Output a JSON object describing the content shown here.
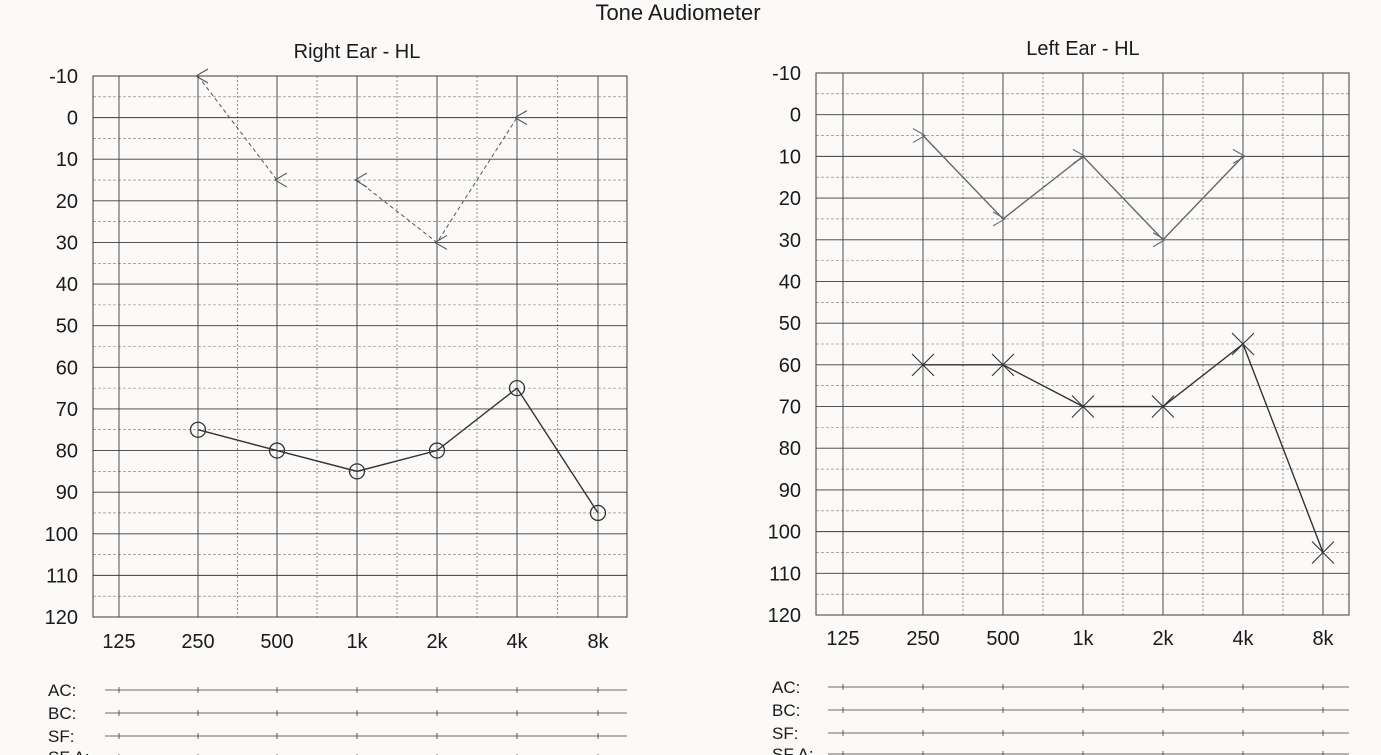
{
  "title": "Tone Audiometer",
  "chart_data": [
    {
      "type": "line",
      "title": "Right Ear - HL",
      "categories": [
        "125",
        "250",
        "500",
        "1k",
        "2k",
        "4k",
        "8k"
      ],
      "y_ticks": [
        "-10",
        "0",
        "10",
        "20",
        "30",
        "40",
        "50",
        "60",
        "70",
        "80",
        "90",
        "100",
        "110",
        "120"
      ],
      "ylim": [
        -10,
        120
      ],
      "y_inverted": true,
      "grid": true,
      "series": [
        {
          "symbol": "less-than",
          "line_style": "dashed",
          "color": "#555555",
          "segments": [
            [
              {
                "x": "250",
                "y": -10
              },
              {
                "x": "500",
                "y": 15
              }
            ],
            [
              {
                "x": "1k",
                "y": 15
              },
              {
                "x": "2k",
                "y": 30
              },
              {
                "x": "4k",
                "y": 0
              }
            ]
          ]
        },
        {
          "symbol": "circle",
          "line_style": "solid",
          "color": "#333333",
          "segments": [
            [
              {
                "x": "250",
                "y": 75
              },
              {
                "x": "500",
                "y": 80
              },
              {
                "x": "1k",
                "y": 85
              },
              {
                "x": "2k",
                "y": 80
              },
              {
                "x": "4k",
                "y": 65
              },
              {
                "x": "8k",
                "y": 95
              }
            ]
          ]
        }
      ]
    },
    {
      "type": "line",
      "title": "Left Ear - HL",
      "categories": [
        "125",
        "250",
        "500",
        "1k",
        "2k",
        "4k",
        "8k"
      ],
      "y_ticks": [
        "-10",
        "0",
        "10",
        "20",
        "30",
        "40",
        "50",
        "60",
        "70",
        "80",
        "90",
        "100",
        "110",
        "120"
      ],
      "ylim": [
        -10,
        120
      ],
      "y_inverted": true,
      "grid": true,
      "series": [
        {
          "symbol": "greater-than",
          "line_style": "solid",
          "color": "#666666",
          "segments": [
            [
              {
                "x": "250",
                "y": 5
              },
              {
                "x": "500",
                "y": 25
              },
              {
                "x": "1k",
                "y": 10
              },
              {
                "x": "2k",
                "y": 30
              },
              {
                "x": "4k",
                "y": 10
              }
            ]
          ]
        },
        {
          "symbol": "cross",
          "line_style": "solid",
          "color": "#333333",
          "segments": [
            [
              {
                "x": "250",
                "y": 60
              },
              {
                "x": "500",
                "y": 60
              },
              {
                "x": "1k",
                "y": 70
              },
              {
                "x": "2k",
                "y": 70
              },
              {
                "x": "4k",
                "y": 55
              },
              {
                "x": "8k",
                "y": 105
              }
            ]
          ]
        }
      ]
    }
  ],
  "strips": {
    "right": [
      "AC:",
      "BC:",
      "SF:",
      "SF A:"
    ],
    "left": [
      "AC:",
      "BC:",
      "SF:",
      "SF A:"
    ]
  },
  "colors": {
    "grid": "#3c3c3c",
    "text": "#1a1a1a",
    "background": "#fbfaf9"
  }
}
